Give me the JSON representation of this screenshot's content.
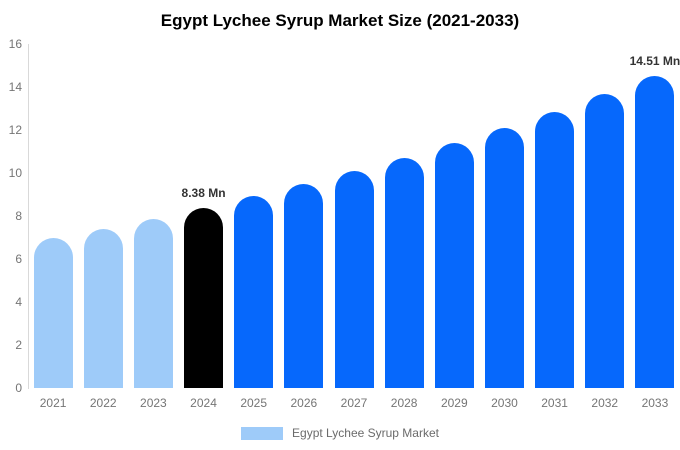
{
  "title": "Egypt Lychee Syrup Market Size (2021-2033)",
  "legend": {
    "label": "Egypt Lychee Syrup Market",
    "swatch_color": "#9ecbf9"
  },
  "colors": {
    "historical_bar": "#9ecbf9",
    "base_year_bar": "#000000",
    "forecast_bar": "#0668fc",
    "axis_line": "#d9d9d9",
    "tick_text": "#757575",
    "value_label_text": "#333333",
    "title_text": "#000000",
    "background": "#ffffff"
  },
  "chart_data": {
    "type": "bar",
    "title": "Egypt Lychee Syrup Market Size (2021-2033)",
    "xlabel": "",
    "ylabel": "",
    "ylim": [
      0,
      16
    ],
    "yticks": [
      0,
      2,
      4,
      6,
      8,
      10,
      12,
      14,
      16
    ],
    "grid": false,
    "legend_position": "bottom",
    "categories": [
      "2021",
      "2022",
      "2023",
      "2024",
      "2025",
      "2026",
      "2027",
      "2028",
      "2029",
      "2030",
      "2031",
      "2032",
      "2033"
    ],
    "values": [
      6.97,
      7.41,
      7.88,
      8.38,
      8.91,
      9.47,
      10.07,
      10.7,
      11.38,
      12.1,
      12.86,
      13.67,
      14.51
    ],
    "bar_colors": [
      "#9ecbf9",
      "#9ecbf9",
      "#9ecbf9",
      "#000000",
      "#0668fc",
      "#0668fc",
      "#0668fc",
      "#0668fc",
      "#0668fc",
      "#0668fc",
      "#0668fc",
      "#0668fc",
      "#0668fc"
    ],
    "annotations": [
      {
        "category": "2024",
        "text": "8.38 Mn"
      },
      {
        "category": "2033",
        "text": "14.51 Mn"
      }
    ],
    "series_name": "Egypt Lychee Syrup Market"
  }
}
